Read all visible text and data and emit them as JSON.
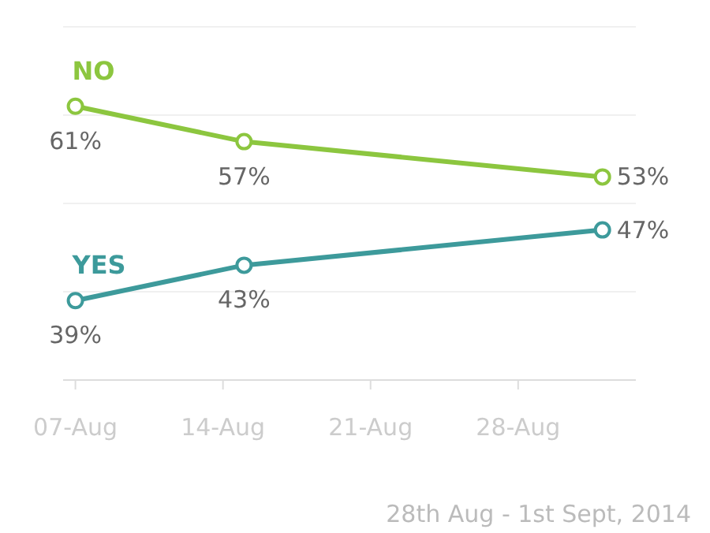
{
  "chart_data": {
    "type": "line",
    "x": [
      "2014-08-07",
      "2014-08-15",
      "2014-09-01"
    ],
    "xlim": [
      "2014-08-06T10:00",
      "2014-09-02T14:00"
    ],
    "xticks": [
      {
        "value": "2014-08-07",
        "label": "07-Aug"
      },
      {
        "value": "2014-08-14",
        "label": "14-Aug"
      },
      {
        "value": "2014-08-21",
        "label": "21-Aug"
      },
      {
        "value": "2014-08-28",
        "label": "28-Aug"
      }
    ],
    "ylim": [
      30,
      70
    ],
    "yticks": [
      {
        "value": 30,
        "label": null
      },
      {
        "value": 40,
        "label": null
      },
      {
        "value": 50,
        "label": null
      },
      {
        "value": 60,
        "label": null
      },
      {
        "value": 70,
        "label": null
      }
    ],
    "series": [
      {
        "name": "NO",
        "color": "#8cc63f",
        "values": [
          61,
          57,
          53
        ],
        "value_labels": [
          "61%",
          "57%",
          "53%"
        ]
      },
      {
        "name": "YES",
        "color": "#3d9a9b",
        "values": [
          39,
          43,
          47
        ],
        "value_labels": [
          "39%",
          "43%",
          "47%"
        ]
      }
    ],
    "grid": "y",
    "tick_labels": "x",
    "marker": "circle",
    "line_style": "solid",
    "annotations": [
      "28th Aug - 1st Sept, 2014"
    ]
  }
}
